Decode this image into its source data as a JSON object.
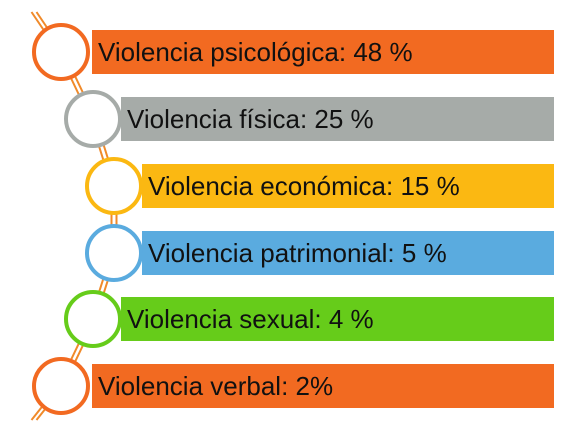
{
  "items": [
    {
      "label": "Violencia psicológica: 48 %",
      "color": "#f26a21"
    },
    {
      "label": "Violencia física: 25 %",
      "color": "#a6aba8"
    },
    {
      "label": "Violencia económica: 15 %",
      "color": "#fbb812"
    },
    {
      "label": "Violencia patrimonial: 5 %",
      "color": "#5aabdf"
    },
    {
      "label": "Violencia sexual: 4 %",
      "color": "#66cc1a"
    },
    {
      "label": "Violencia verbal: 2%",
      "color": "#f26a21"
    }
  ],
  "connector_color": "#f08a2a"
}
